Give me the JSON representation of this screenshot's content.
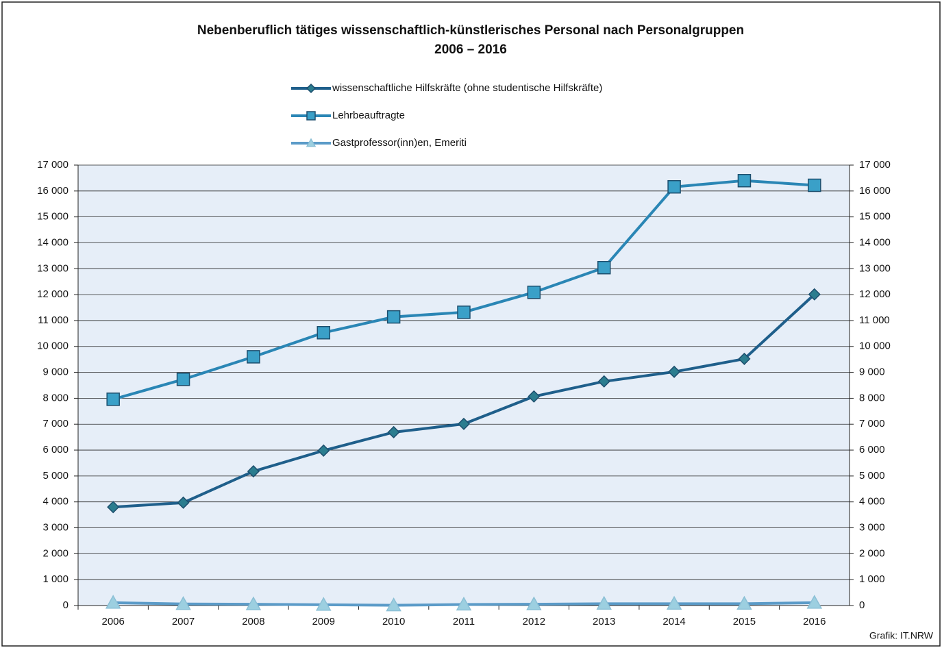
{
  "chart_data": {
    "type": "line",
    "title": "Nebenberuflich tätiges wissenschaftlich-künstlerisches Personal nach Personalgruppen",
    "subtitle": "2006 – 2016",
    "source": "Grafik: IT.NRW",
    "categories": [
      "2006",
      "2007",
      "2008",
      "2009",
      "2010",
      "2011",
      "2012",
      "2013",
      "2014",
      "2015",
      "2016"
    ],
    "series": [
      {
        "name": "wissenschaftliche Hilfskräfte (ohne studentische Hilfskräfte)",
        "color": "#1f5f8b",
        "marker_color": "#2b7d8f",
        "marker": "diamond",
        "values": [
          3800,
          3970,
          5180,
          5980,
          6690,
          7010,
          8070,
          8650,
          9020,
          9520,
          12010
        ]
      },
      {
        "name": "Lehrbeauftragte",
        "color": "#2a86b5",
        "marker_color": "#3aa0c8",
        "marker": "square",
        "values": [
          7960,
          8730,
          9600,
          10530,
          11140,
          11320,
          12090,
          13040,
          16160,
          16400,
          16220
        ]
      },
      {
        "name": "Gastprofessor(inn)en, Emeriti",
        "color": "#5b9bc8",
        "marker_color": "#9ccfe0",
        "marker": "triangle",
        "values": [
          110,
          60,
          50,
          30,
          10,
          40,
          50,
          70,
          70,
          70,
          110
        ]
      }
    ],
    "ylim": [
      0,
      17000
    ],
    "yticks": [
      0,
      {
        "value": 1000,
        "label": "1 000"
      },
      {
        "value": 2000,
        "label": "2 000"
      },
      {
        "value": 3000,
        "label": "3 000"
      },
      {
        "value": 4000,
        "label": "4 000"
      },
      {
        "value": 5000,
        "label": "5 000"
      },
      {
        "value": 6000,
        "label": "6 000"
      },
      {
        "value": 7000,
        "label": "7 000"
      },
      {
        "value": 8000,
        "label": "8 000"
      },
      {
        "value": 9000,
        "label": "9 000"
      },
      {
        "value": 10000,
        "label": "10 000"
      },
      {
        "value": 11000,
        "label": "11 000"
      },
      {
        "value": 12000,
        "label": "12 000"
      },
      {
        "value": 13000,
        "label": "13 000"
      },
      {
        "value": 14000,
        "label": "14 000"
      },
      {
        "value": 15000,
        "label": "15 000"
      },
      {
        "value": 16000,
        "label": "16 000"
      },
      {
        "value": 17000,
        "label": "17 000"
      }
    ],
    "y2lim": [
      0,
      17000
    ],
    "y2ticks": [
      0,
      {
        "value": 1000,
        "label": "1 000"
      },
      {
        "value": 2000,
        "label": "2 000"
      },
      {
        "value": 3000,
        "label": "3 000"
      },
      {
        "value": 4000,
        "label": "4 000"
      },
      {
        "value": 5000,
        "label": "5 000"
      },
      {
        "value": 6000,
        "label": "6 000"
      },
      {
        "value": 7000,
        "label": "7 000"
      },
      {
        "value": 8000,
        "label": "8 000"
      },
      {
        "value": 9000,
        "label": "9 000"
      },
      {
        "value": 10000,
        "label": "10 000"
      },
      {
        "value": 11000,
        "label": "11 000"
      },
      {
        "value": 12000,
        "label": "12 000"
      },
      {
        "value": 13000,
        "label": "13 000"
      },
      {
        "value": 14000,
        "label": "14 000"
      },
      {
        "value": 15000,
        "label": "15 000"
      },
      {
        "value": 16000,
        "label": "16 000"
      },
      {
        "value": 17000,
        "label": "17 000"
      }
    ],
    "grid": true,
    "legend": "top",
    "plot_background": "#e6eef8"
  }
}
